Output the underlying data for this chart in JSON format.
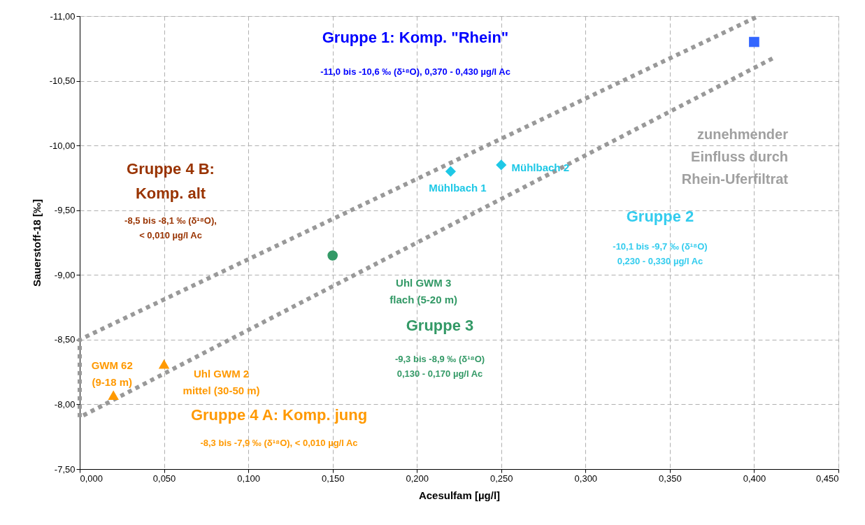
{
  "chart_data": {
    "type": "scatter",
    "xlabel": "Acesulfam [µg/l]",
    "ylabel": "Sauerstoff-18 [‰]",
    "xlim": [
      0,
      0.45
    ],
    "ylim": [
      -7.5,
      -11
    ],
    "xticks": [
      {
        "value": 0,
        "label": "0,000"
      },
      {
        "value": 0.05,
        "label": "0,050"
      },
      {
        "value": 0.1,
        "label": "0,100"
      },
      {
        "value": 0.15,
        "label": "0,150"
      },
      {
        "value": 0.2,
        "label": "0,200"
      },
      {
        "value": 0.25,
        "label": "0,250"
      },
      {
        "value": 0.3,
        "label": "0,300"
      },
      {
        "value": 0.35,
        "label": "0,350"
      },
      {
        "value": 0.4,
        "label": "0,400"
      },
      {
        "value": 0.45,
        "label": "0,450"
      }
    ],
    "yticks": [
      {
        "value": -7.5,
        "label": "-7,50"
      },
      {
        "value": -8,
        "label": "-8,00"
      },
      {
        "value": -8.5,
        "label": "-8,50"
      },
      {
        "value": -9,
        "label": "-9,00"
      },
      {
        "value": -9.5,
        "label": "-9,50"
      },
      {
        "value": -10,
        "label": "-10,00"
      },
      {
        "value": -10.5,
        "label": "-10,50"
      },
      {
        "value": -11,
        "label": "-11,00"
      }
    ],
    "grid": true,
    "series": [
      {
        "color": "#3366ff",
        "marker": "square",
        "x": [
          0.4
        ],
        "values": [
          -10.8
        ]
      },
      {
        "name": "Mühlbach 1",
        "color": "#1ec8e6",
        "marker": "diamond",
        "x": [
          0.22
        ],
        "values": [
          -9.8
        ]
      },
      {
        "name": "Mühlbach 2",
        "color": "#1ec8e6",
        "marker": "diamond",
        "x": [
          0.25
        ],
        "values": [
          -9.85
        ]
      },
      {
        "name": "Uhl GWM 3\nflach (5-20 m)",
        "color": "#339966",
        "marker": "circle",
        "x": [
          0.15
        ],
        "values": [
          -9.15
        ]
      },
      {
        "name": "GWM 62\n(9-18 m)",
        "color": "#ff9900",
        "marker": "triangle",
        "x": [
          0.02
        ],
        "values": [
          -8.07
        ]
      },
      {
        "name": "Uhl GWM 2\nmittel (30-50 m)",
        "color": "#ff9900",
        "marker": "triangle",
        "x": [
          0.05
        ],
        "values": [
          -8.31
        ]
      },
      {
        "type": "line",
        "color": "#999999",
        "line_style": "dotted",
        "marker": "none",
        "x": [
          0.401,
          0,
          0,
          0.412
        ],
        "values": [
          -10.99,
          -8.5,
          -7.9,
          -10.68
        ]
      }
    ],
    "annotations": [
      "Gruppe 1: Komp. \"Rhein\"",
      "-11,0 bis -10,6 ‰ (δ¹⁸O), 0,370 - 0,430 µg/l Ac",
      "zunehmender\nEinfluss durch\nRhein-Uferfiltrat",
      "Gruppe 4 B:\nKomp. alt",
      "-8,5 bis -8,1 ‰ (δ¹⁸O),\n< 0,010 µg/l Ac",
      "Gruppe 2",
      "-10,1 bis -9,7 ‰ (δ¹⁸O)\n0,230 - 0,330 µg/l Ac",
      "Gruppe 3",
      "-9,3 bis -8,9 ‰ (δ¹⁸O)\n0,130 - 0,170 µg/l Ac",
      "Gruppe 4 A: Komp. jung",
      "-8,3 bis -7,9 ‰ (δ¹⁸O), < 0,010 µg/l Ac"
    ]
  }
}
